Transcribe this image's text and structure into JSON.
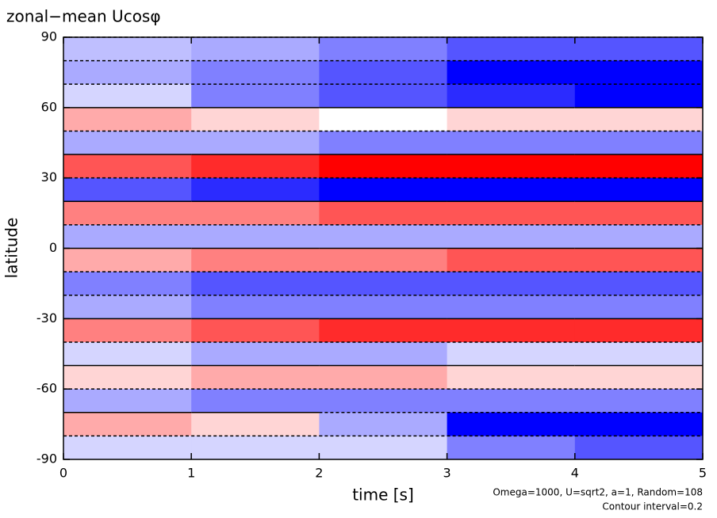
{
  "chart_data": {
    "type": "heatmap",
    "title": "zonal−mean Ucosφ",
    "x_label": "time [s]",
    "y_label": "latitude",
    "notes": [
      "Omega=1000, U=sqrt2, a=1, Random=108",
      "Contour interval=0.2"
    ],
    "x": [
      0.5,
      1.5,
      2.5,
      3.5,
      4.5
    ],
    "y": [
      85,
      75,
      65,
      55,
      45,
      35,
      25,
      15,
      5,
      -5,
      -15,
      -25,
      -35,
      -45,
      -55,
      -65,
      -75,
      -85
    ],
    "values": [
      [
        -0.3,
        -0.4,
        -0.6,
        -0.8,
        -0.8
      ],
      [
        -0.4,
        -0.6,
        -0.8,
        -1.4,
        -1.6
      ],
      [
        -0.2,
        -0.6,
        -0.8,
        -1.0,
        -1.2
      ],
      [
        0.4,
        0.2,
        0,
        0.2,
        0.2
      ],
      [
        -0.4,
        -0.4,
        -0.6,
        -0.6,
        -0.6
      ],
      [
        0.8,
        1.0,
        1.2,
        1.2,
        1.2
      ],
      [
        -0.8,
        -1.0,
        -1.2,
        -1.2,
        -1.2
      ],
      [
        0.6,
        0.6,
        0.8,
        0.8,
        0.8
      ],
      [
        -0.4,
        -0.4,
        -0.4,
        -0.4,
        -0.4
      ],
      [
        0.4,
        0.6,
        0.6,
        0.8,
        0.8
      ],
      [
        -0.6,
        -0.8,
        -0.8,
        -0.8,
        -0.8
      ],
      [
        -0.4,
        -0.6,
        -0.6,
        -0.6,
        -0.6
      ],
      [
        0.6,
        0.8,
        1.0,
        1.0,
        1.0
      ],
      [
        -0.2,
        -0.4,
        -0.4,
        -0.2,
        -0.2
      ],
      [
        0.2,
        0.4,
        0.4,
        0.2,
        0.2
      ],
      [
        -0.4,
        -0.6,
        -0.6,
        -0.6,
        -0.6
      ],
      [
        0.4,
        0.2,
        -0.4,
        -1.2,
        -1.4
      ],
      [
        -0.2,
        -0.2,
        -0.2,
        -0.6,
        -0.8
      ]
    ],
    "clim": [
      -1.2,
      1.2
    ],
    "colors": {
      "negative": "#0000ff",
      "positive": "#ff0000",
      "zero": "#ffffff"
    },
    "xlim": [
      0,
      5
    ],
    "xticks": [
      0,
      1,
      2,
      3,
      4,
      5
    ],
    "ylim": [
      -90,
      90
    ],
    "yticks": [
      90,
      60,
      30,
      0,
      -30,
      -60,
      -90
    ]
  }
}
